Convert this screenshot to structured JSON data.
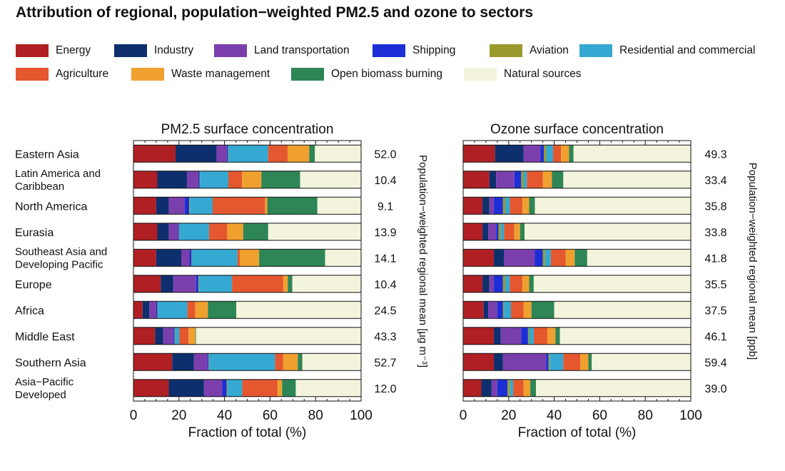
{
  "title": "Attribution of regional, population−weighted PM2.5 and ozone to sectors",
  "sectors": [
    {
      "name": "Energy",
      "color": "#b01f24"
    },
    {
      "name": "Industry",
      "color": "#0d2f6e"
    },
    {
      "name": "Land transportation",
      "color": "#7b3fad"
    },
    {
      "name": "Shipping",
      "color": "#1c2fd6"
    },
    {
      "name": "Aviation",
      "color": "#9a9a2c"
    },
    {
      "name": "Residential and commercial",
      "color": "#35a9d1"
    },
    {
      "name": "Agriculture",
      "color": "#e5572e"
    },
    {
      "name": "Waste management",
      "color": "#f0a02e"
    },
    {
      "name": "Open biomass burning",
      "color": "#2e8556"
    },
    {
      "name": "Natural sources",
      "color": "#f4f4dc"
    }
  ],
  "chart_data": [
    {
      "type": "bar",
      "orientation": "horizontal",
      "stacked": true,
      "title": "PM2.5 surface concentration",
      "xlabel": "Fraction of total (%)",
      "ylabel_right": "Population−weighted regional mean [µg m⁻³]",
      "xlim": [
        0,
        100
      ],
      "xticks": [
        "0",
        "20",
        "40",
        "60",
        "80",
        "100"
      ],
      "categories": [
        "Eastern Asia",
        "Latin America and Caribbean",
        "North America",
        "Eurasia",
        "Southeast Asia and Developing Pacific",
        "Europe",
        "Africa",
        "Middle East",
        "Southern Asia",
        "Asia−Pacific Developed"
      ],
      "category_lines": [
        [
          "Eastern Asia"
        ],
        [
          "Latin America and",
          "Caribbean"
        ],
        [
          "North America"
        ],
        [
          "Eurasia"
        ],
        [
          "Southeast Asia and",
          "Developing Pacific"
        ],
        [
          "Europe"
        ],
        [
          "Africa"
        ],
        [
          "Middle East"
        ],
        [
          "Southern Asia"
        ],
        [
          "Asia−Pacific",
          "Developed"
        ]
      ],
      "regional_means": [
        "52.0",
        "10.4",
        "9.1",
        "13.9",
        "14.1",
        "10.4",
        "24.5",
        "43.3",
        "52.7",
        "12.0"
      ],
      "series": [
        {
          "name": "Energy",
          "values": [
            18.5,
            10.5,
            10,
            10.5,
            10,
            12,
            4,
            9.5,
            17,
            15.5
          ]
        },
        {
          "name": "Industry",
          "values": [
            18,
            13,
            5.5,
            5,
            11,
            5.5,
            3,
            3.5,
            9.5,
            15.5
          ]
        },
        {
          "name": "Land transportation",
          "values": [
            4.5,
            5,
            7,
            4,
            3.5,
            10,
            3,
            4.5,
            6,
            8
          ]
        },
        {
          "name": "Shipping",
          "values": [
            0.5,
            0.5,
            2,
            0.5,
            1,
            1,
            0.5,
            0.5,
            0.5,
            2
          ]
        },
        {
          "name": "Aviation",
          "values": [
            0.2,
            0.2,
            0.3,
            0.2,
            0.2,
            0.3,
            0.2,
            0.2,
            0.2,
            0.3
          ]
        },
        {
          "name": "Residential and commercial",
          "values": [
            17.5,
            12.5,
            10,
            13,
            20,
            14.5,
            13,
            2,
            29,
            6.5
          ]
        },
        {
          "name": "Agriculture",
          "values": [
            8.5,
            6,
            23,
            8,
            1,
            22.5,
            3.5,
            4,
            3.5,
            15.5
          ]
        },
        {
          "name": "Waste management",
          "values": [
            9.5,
            8.5,
            1,
            7,
            8.5,
            2,
            5.5,
            3,
            6.5,
            2
          ]
        },
        {
          "name": "Open biomass burning",
          "values": [
            2.5,
            17,
            22,
            11,
            29,
            2,
            12.5,
            0.3,
            2,
            6
          ]
        },
        {
          "name": "Natural sources",
          "values": [
            20.3,
            26.8,
            19.2,
            40.8,
            15.8,
            30.2,
            54.8,
            72.5,
            25.8,
            28.7
          ]
        }
      ]
    },
    {
      "type": "bar",
      "orientation": "horizontal",
      "stacked": true,
      "title": "Ozone surface concentration",
      "xlabel": "Fraction of total (%)",
      "ylabel_right": "Population−weighted regional mean [ppb]",
      "xlim": [
        0,
        100
      ],
      "xticks": [
        "0",
        "20",
        "40",
        "60",
        "80",
        "100"
      ],
      "categories": [
        "Eastern Asia",
        "Latin America and Caribbean",
        "North America",
        "Eurasia",
        "Southeast Asia and Developing Pacific",
        "Europe",
        "Africa",
        "Middle East",
        "Southern Asia",
        "Asia−Pacific Developed"
      ],
      "regional_means": [
        "49.3",
        "33.4",
        "35.8",
        "33.8",
        "41.8",
        "35.5",
        "37.5",
        "46.1",
        "59.4",
        "39.0"
      ],
      "series": [
        {
          "name": "Energy",
          "values": [
            14,
            11.5,
            8.5,
            8.5,
            13.5,
            8.5,
            9,
            13.5,
            13.5,
            8
          ]
        },
        {
          "name": "Industry",
          "values": [
            12.5,
            3,
            3,
            2.5,
            4.5,
            3,
            2,
            3,
            4,
            4.5
          ]
        },
        {
          "name": "Land transportation",
          "values": [
            7.5,
            8,
            2,
            3.5,
            13.5,
            2,
            4,
            9,
            19,
            2.5
          ]
        },
        {
          "name": "Shipping",
          "values": [
            1.5,
            3,
            4,
            1,
            3.5,
            4,
            2.5,
            3,
            1,
            4.5
          ]
        },
        {
          "name": "Aviation",
          "values": [
            1,
            1,
            1,
            1,
            1,
            1,
            0.5,
            0.5,
            0.5,
            1
          ]
        },
        {
          "name": "Residential and commercial",
          "values": [
            3,
            1.5,
            2,
            1.5,
            2.5,
            2,
            3,
            2,
            6,
            1.5
          ]
        },
        {
          "name": "Agriculture",
          "values": [
            3.5,
            7,
            5.5,
            4.5,
            6.5,
            5.5,
            5.5,
            6,
            7.5,
            4.5
          ]
        },
        {
          "name": "Waste management",
          "values": [
            3.5,
            4,
            3,
            2.5,
            4,
            3,
            3.5,
            3.5,
            3.5,
            3
          ]
        },
        {
          "name": "Open biomass burning",
          "values": [
            2,
            5,
            2.5,
            2,
            5.5,
            2,
            10,
            2,
            1.5,
            2.5
          ]
        },
        {
          "name": "Natural sources",
          "values": [
            51.5,
            56,
            68.5,
            73,
            45.5,
            69,
            60,
            57.5,
            43.5,
            68
          ]
        }
      ]
    }
  ]
}
